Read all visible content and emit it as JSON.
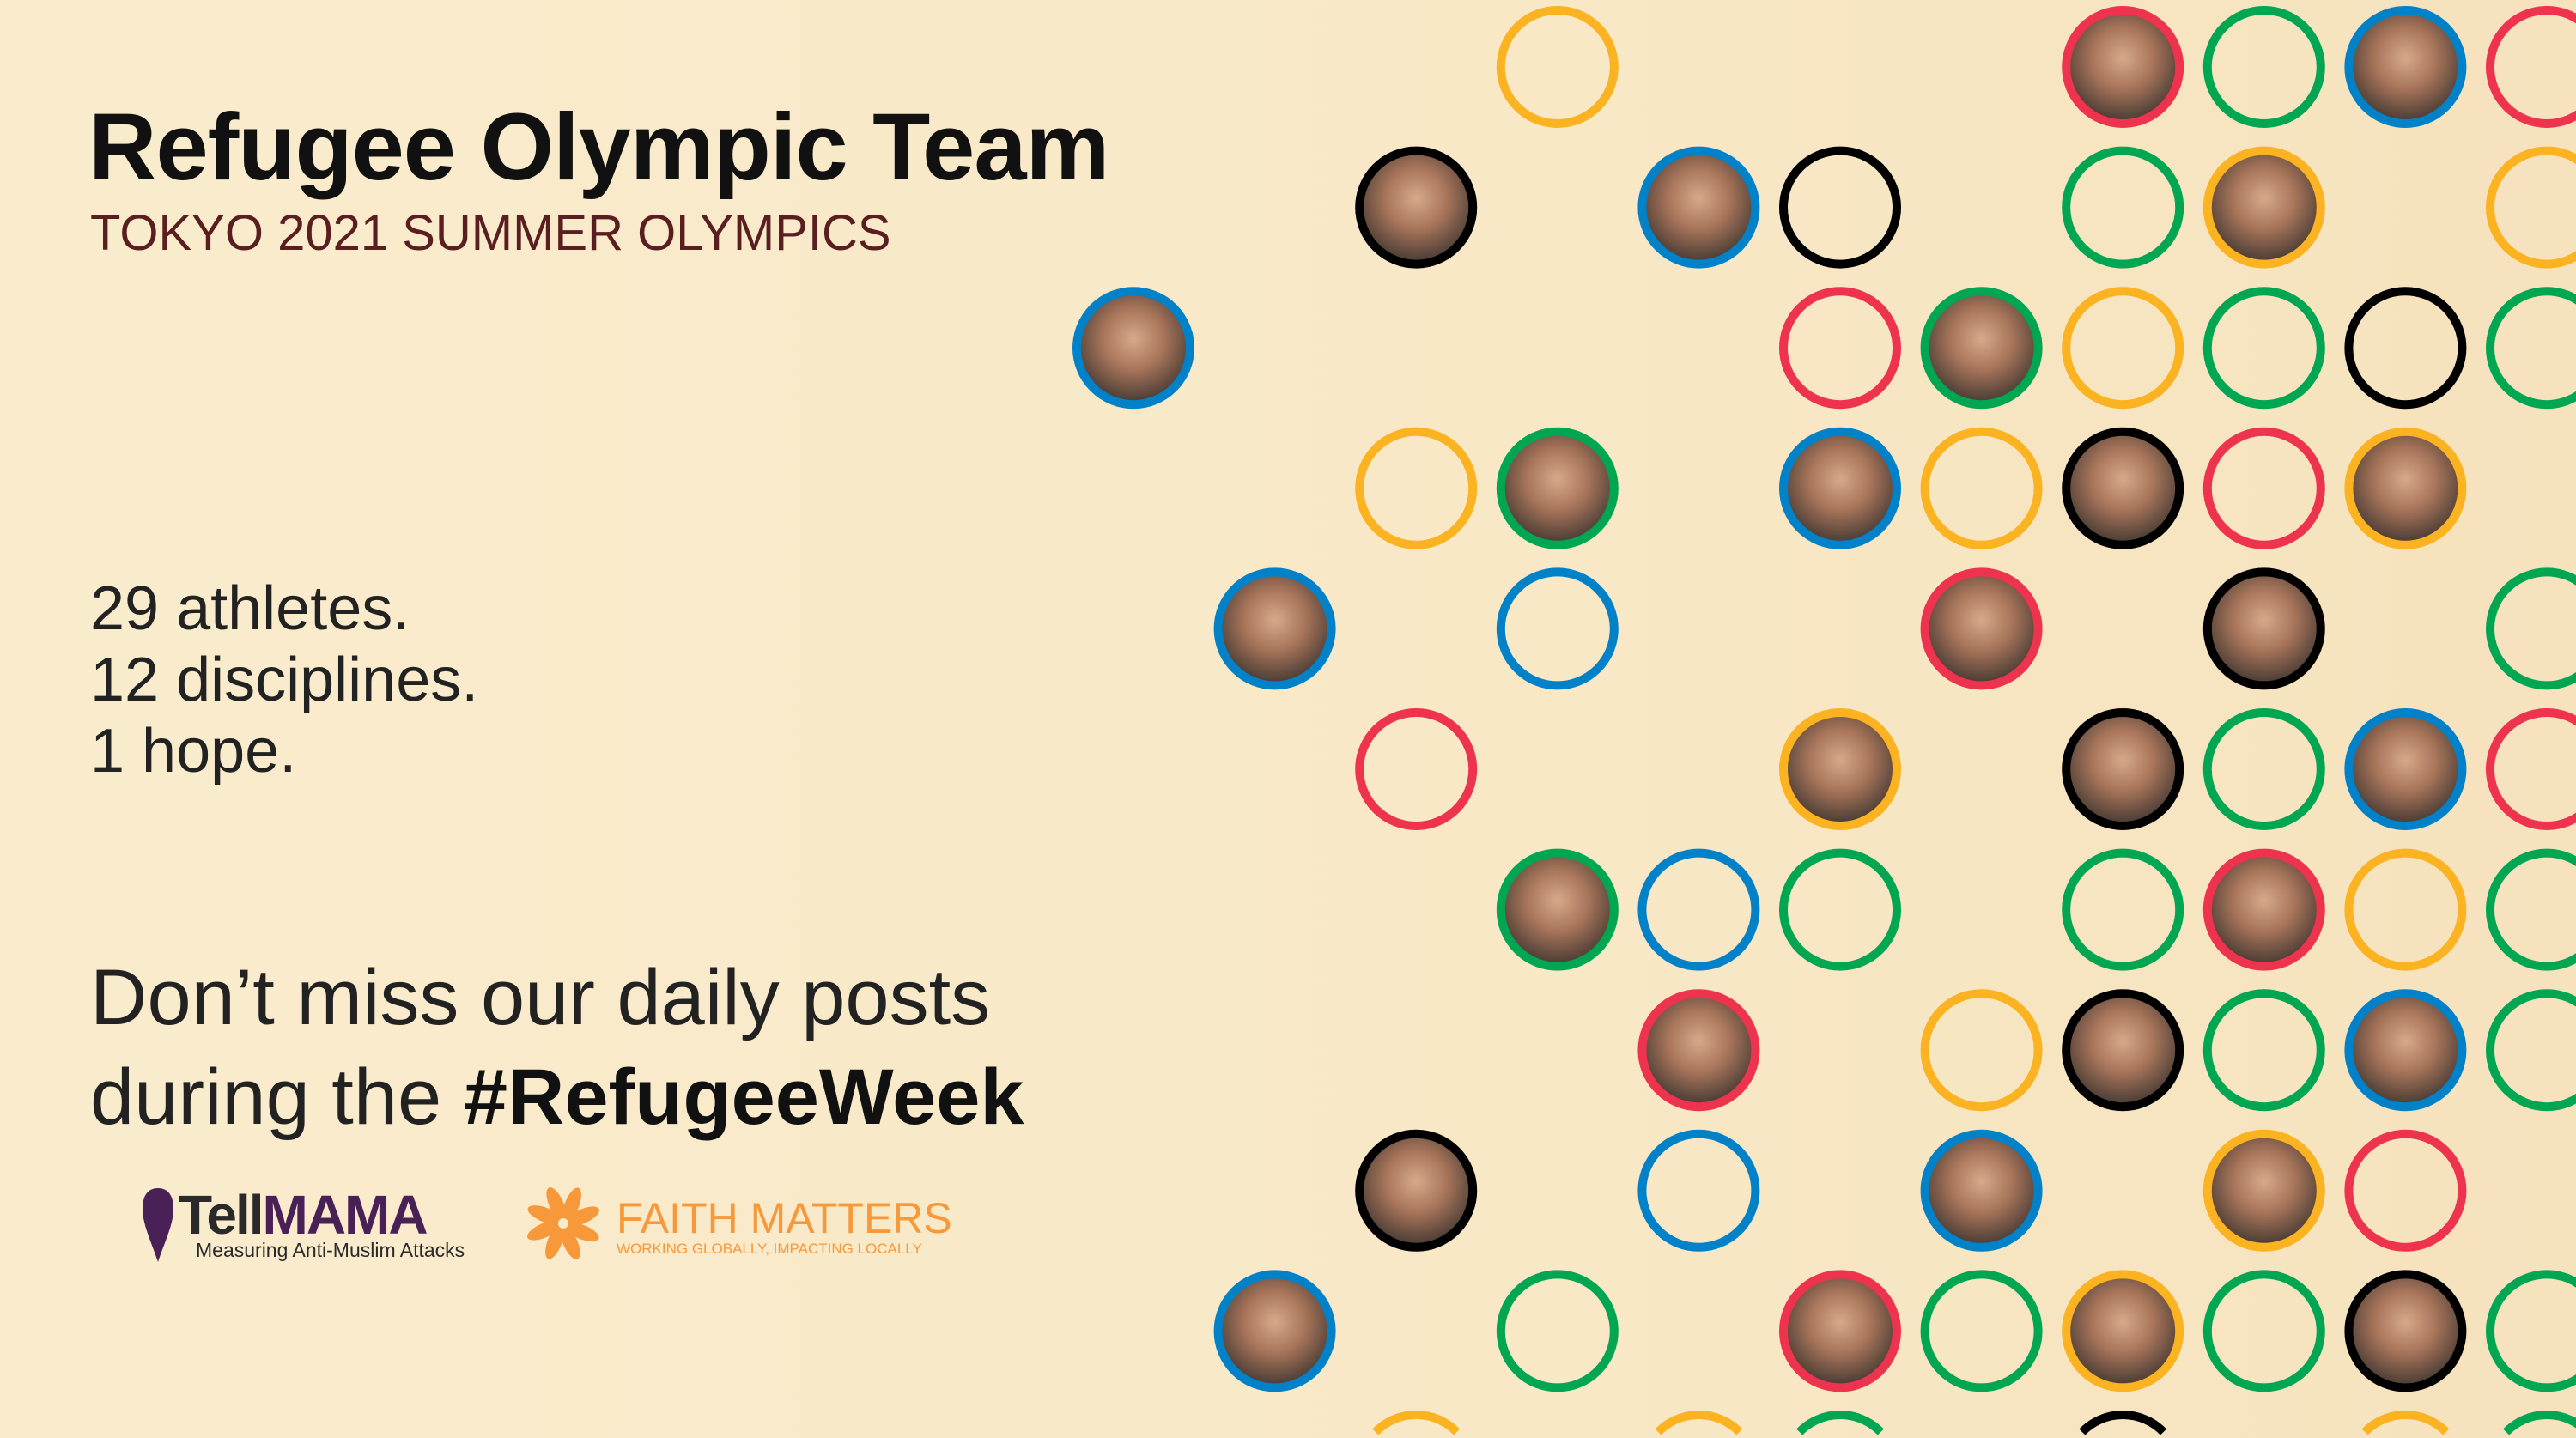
{
  "header": {
    "title": "Refugee Olympic Team",
    "subtitle": "TOKYO 2021 SUMMER OLYMPICS"
  },
  "stats": [
    "29 athletes.",
    "12 disciplines.",
    "1 hope."
  ],
  "cta": {
    "line1": "Don’t miss our daily posts",
    "line2_prefix": "during the ",
    "hashtag": "#RefugeeWeek"
  },
  "logos": {
    "tellmama": {
      "name_dark": "Tell",
      "name_purple": "MAMA",
      "tagline": "Measuring Anti-Muslim Attacks",
      "color": "#4a2157"
    },
    "faith_matters": {
      "name": "FAITH MATTERS",
      "tagline": "WORKING GLOBALLY, IMPACTING LOCALLY",
      "color": "#f7993b"
    }
  },
  "ring_colors": {
    "yellow": "#fbb321",
    "red": "#ee334e",
    "green": "#00a651",
    "blue": "#0081c8",
    "black": "#000000"
  }
}
